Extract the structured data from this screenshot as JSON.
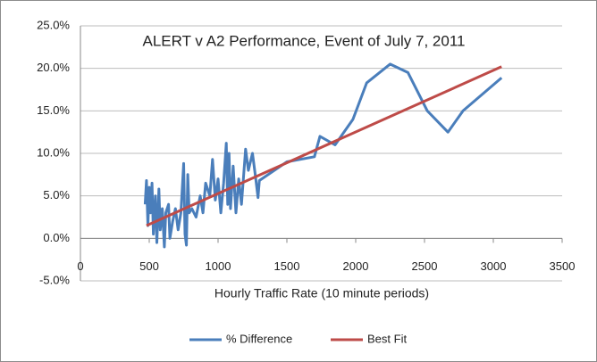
{
  "chart_data": {
    "type": "line",
    "title": "ALERT v A2 Performance, Event of July 7, 2011",
    "xlabel": "Hourly Traffic Rate (10 minute periods)",
    "xlim": [
      0,
      3500
    ],
    "xticks": [
      0,
      500,
      1000,
      1500,
      2000,
      2500,
      3000,
      3500
    ],
    "ylim": [
      -5,
      25
    ],
    "yticks": [
      {
        "value": -5,
        "label": "-5.0%"
      },
      {
        "value": 0,
        "label": "0.0%"
      },
      {
        "value": 5,
        "label": "5.0%"
      },
      {
        "value": 10,
        "label": "10.0%"
      },
      {
        "value": 15,
        "label": "15.0%"
      },
      {
        "value": 20,
        "label": "20.0%"
      },
      {
        "value": 25,
        "label": "25.0%"
      }
    ],
    "grid": true,
    "legend": "bottom",
    "series": [
      {
        "name": "% Difference",
        "color": "#4a7ebb",
        "x": [
          470,
          480,
          490,
          500,
          510,
          520,
          530,
          545,
          555,
          570,
          580,
          595,
          610,
          620,
          640,
          650,
          670,
          690,
          710,
          730,
          750,
          760,
          770,
          780,
          790,
          810,
          840,
          870,
          890,
          910,
          940,
          960,
          980,
          1000,
          1020,
          1040,
          1060,
          1070,
          1080,
          1090,
          1110,
          1130,
          1150,
          1170,
          1200,
          1220,
          1250,
          1270,
          1290,
          1300,
          1500,
          1700,
          1740,
          1850,
          1980,
          2080,
          2250,
          2380,
          2520,
          2670,
          2780,
          3060
        ],
        "values": [
          4.0,
          6.8,
          1.5,
          6.0,
          3.0,
          6.5,
          0.5,
          5.0,
          -0.5,
          5.8,
          1.0,
          3.5,
          -1.0,
          3.0,
          4.0,
          0.0,
          2.0,
          3.5,
          1.0,
          3.0,
          8.8,
          0.5,
          -0.8,
          7.5,
          3.0,
          3.5,
          2.5,
          5.0,
          3.0,
          6.5,
          5.0,
          9.3,
          4.5,
          7.0,
          3.0,
          6.5,
          11.2,
          4.0,
          10.0,
          3.5,
          8.5,
          3.0,
          7.0,
          4.0,
          10.5,
          8.0,
          10.0,
          7.5,
          4.8,
          6.8,
          9.0,
          9.6,
          12.0,
          11.0,
          14.0,
          18.3,
          20.5,
          19.5,
          15.0,
          12.5,
          15.0,
          18.9
        ]
      },
      {
        "name": "Best Fit",
        "color": "#be4b48",
        "x": [
          480,
          3060
        ],
        "values": [
          1.5,
          20.2
        ]
      }
    ]
  }
}
